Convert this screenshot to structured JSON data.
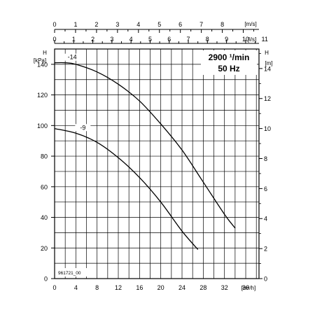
{
  "chart_data": {
    "type": "line",
    "ylabel_left": "H",
    "ylabel_left_unit": "[kPa]",
    "ylabel_right": "H",
    "ylabel_right_unit": "[m]",
    "xlabel_bottom_unit": "[m³/h]",
    "xlabel_top1_unit": "[m/s]",
    "xlabel_top2_unit": "[l/s]",
    "speed_text": "2900 ¹/min",
    "frequency_text": "50 Hz",
    "drawing_id": "961721_00",
    "xlim": [
      0,
      38.5
    ],
    "ylim_kpa": [
      0,
      150
    ],
    "ylim_m": [
      0,
      15.3
    ],
    "ylim_top_ms": [
      0,
      9.75
    ],
    "ylim_top_ls": [
      0,
      10.7
    ],
    "x_ticks": [
      "0",
      "4",
      "8",
      "12",
      "16",
      "20",
      "24",
      "28",
      "32",
      "36"
    ],
    "y_ticks_kpa": [
      "0",
      "20",
      "40",
      "60",
      "80",
      "100",
      "120",
      "140"
    ],
    "y_ticks_m": [
      "0",
      "2",
      "4",
      "6",
      "8",
      "10",
      "12",
      "14"
    ],
    "top_ticks_ms": [
      "0",
      "1",
      "2",
      "3",
      "4",
      "5",
      "6",
      "7",
      "8"
    ],
    "top_ticks_ls": [
      "0",
      "1",
      "2",
      "3",
      "4",
      "5",
      "6",
      "7",
      "8",
      "9",
      "10",
      "11"
    ],
    "grid": true,
    "series": [
      {
        "name": "-14",
        "x": [
          0,
          2,
          4,
          8,
          12,
          16,
          20,
          24,
          28,
          32,
          34
        ],
        "y": [
          141,
          141,
          140,
          135,
          127,
          116,
          101,
          84,
          63,
          42,
          33
        ]
      },
      {
        "name": "-9",
        "x": [
          0,
          4,
          8,
          12,
          16,
          20,
          24,
          27
        ],
        "y": [
          98,
          95,
          89,
          79,
          66,
          50,
          31,
          19
        ]
      }
    ]
  }
}
